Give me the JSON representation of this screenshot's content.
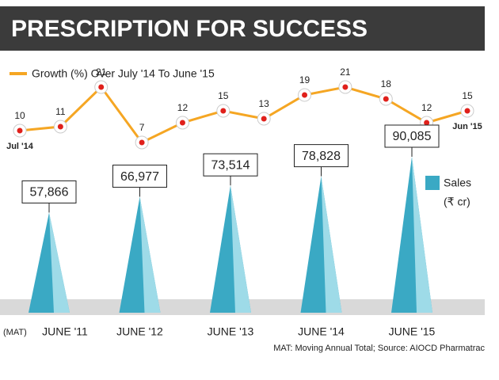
{
  "chart_data": [
    {
      "type": "line",
      "title": "PRESCRIPTION FOR SUCCESS",
      "categories": [
        "Jul '14",
        null,
        null,
        null,
        null,
        null,
        null,
        null,
        null,
        null,
        null,
        "Jun '15"
      ],
      "series": [
        {
          "name": "Growth (%) Over July '14 To June '15",
          "color": "#f5a623",
          "values": [
            10,
            11,
            21,
            7,
            12,
            15,
            13,
            19,
            21,
            18,
            12,
            15
          ]
        }
      ]
    },
    {
      "type": "bar",
      "prefix": "(MAT)",
      "categories": [
        "JUNE '11",
        "JUNE '12",
        "JUNE '13",
        "JUNE '14",
        "JUNE '15"
      ],
      "series": [
        {
          "name": "Sales",
          "unit": "(₹ cr)",
          "color": "#3aa9c4",
          "values": [
            57866,
            66977,
            73514,
            78828,
            90085
          ],
          "value_labels": [
            "57,866",
            "66,977",
            "73,514",
            "78,828",
            "90,085"
          ]
        }
      ],
      "footnote": "MAT: Moving Annual Total; Source: AIOCD Pharmatrac"
    }
  ]
}
